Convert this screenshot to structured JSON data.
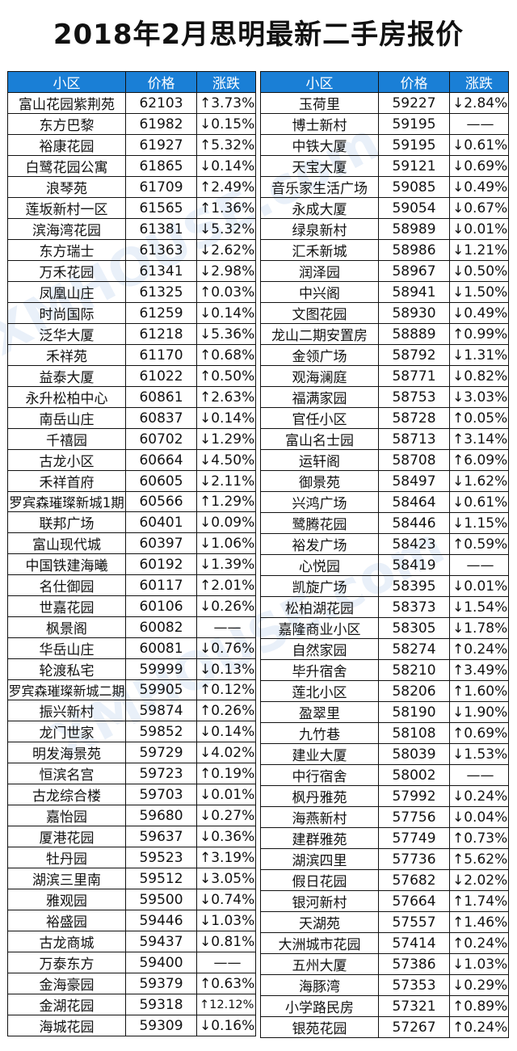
{
  "title": "2018年2月思明最新二手房报价",
  "headers": [
    "小区",
    "价格",
    "涨跌"
  ],
  "left_rows": [
    [
      "富山花园紫荆苑",
      "62103",
      "↑3.73%"
    ],
    [
      "东方巴黎",
      "61982",
      "↓0.15%"
    ],
    [
      "裕康花园",
      "61927",
      "↑5.32%"
    ],
    [
      "白鹭花园公寓",
      "61865",
      "↓0.14%"
    ],
    [
      "浪琴苑",
      "61709",
      "↑2.49%"
    ],
    [
      "莲坂新村一区",
      "61565",
      "↑1.36%"
    ],
    [
      "滨海湾花园",
      "61381",
      "↓5.32%"
    ],
    [
      "东方瑞士",
      "61363",
      "↓2.62%"
    ],
    [
      "万禾花园",
      "61341",
      "↓2.98%"
    ],
    [
      "凤凰山庄",
      "61325",
      "↑0.03%"
    ],
    [
      "时尚国际",
      "61259",
      "↓0.14%"
    ],
    [
      "泛华大厦",
      "61218",
      "↓5.36%"
    ],
    [
      "禾祥苑",
      "61170",
      "↑0.68%"
    ],
    [
      "益泰大厦",
      "61022",
      "↑0.50%"
    ],
    [
      "永升松柏中心",
      "60861",
      "↑2.63%"
    ],
    [
      "南岳山庄",
      "60837",
      "↓0.14%"
    ],
    [
      "千禧园",
      "60702",
      "↓1.29%"
    ],
    [
      "古龙小区",
      "60664",
      "↓4.50%"
    ],
    [
      "禾祥首府",
      "60605",
      "↓2.11%"
    ],
    [
      "罗宾森璀璨新城1期",
      "60566",
      "↑1.29%"
    ],
    [
      "联邦广场",
      "60401",
      "↓0.09%"
    ],
    [
      "富山现代城",
      "60397",
      "↓1.06%"
    ],
    [
      "中国铁建海曦",
      "60192",
      "↓1.39%"
    ],
    [
      "名仕御园",
      "60117",
      "↑2.01%"
    ],
    [
      "世嘉花园",
      "60106",
      "↓0.26%"
    ],
    [
      "枫景阁",
      "60082",
      "——"
    ],
    [
      "华岳山庄",
      "60081",
      "↓0.76%"
    ],
    [
      "轮渡私宅",
      "59999",
      "↓0.13%"
    ],
    [
      "罗宾森璀璨新城二期",
      "59905",
      "↑0.12%"
    ],
    [
      "振兴新村",
      "59874",
      "↑0.26%"
    ],
    [
      "龙门世家",
      "59852",
      "↓0.14%"
    ],
    [
      "明发海景苑",
      "59729",
      "↓4.02%"
    ],
    [
      "恒滨名宫",
      "59723",
      "↑0.19%"
    ],
    [
      "古龙综合楼",
      "59703",
      "↓0.01%"
    ],
    [
      "嘉怡园",
      "59680",
      "↓0.27%"
    ],
    [
      "厦港花园",
      "59637",
      "↓0.36%"
    ],
    [
      "牡丹园",
      "59523",
      "↑3.19%"
    ],
    [
      "湖滨三里南",
      "59512",
      "↓3.05%"
    ],
    [
      "雅观园",
      "59500",
      "↓0.74%"
    ],
    [
      "裕盛园",
      "59446",
      "↓1.03%"
    ],
    [
      "古龙商城",
      "59437",
      "↓0.81%"
    ],
    [
      "万泰东方",
      "59400",
      "——"
    ],
    [
      "金海豪园",
      "59379",
      "↑0.63%"
    ],
    [
      "金湖花园",
      "59318",
      "↑12.12%"
    ],
    [
      "海城花园",
      "59309",
      "↓0.16%"
    ]
  ],
  "right_rows": [
    [
      "玉荷里",
      "59227",
      "↓2.84%"
    ],
    [
      "博士新村",
      "59195",
      "——"
    ],
    [
      "中铁大厦",
      "59195",
      "↓0.61%"
    ],
    [
      "天宝大厦",
      "59121",
      "↓0.69%"
    ],
    [
      "音乐家生活广场",
      "59085",
      "↓0.49%"
    ],
    [
      "永成大厦",
      "59054",
      "↓0.67%"
    ],
    [
      "绿泉新村",
      "58989",
      "↓0.01%"
    ],
    [
      "汇禾新城",
      "58986",
      "↓1.21%"
    ],
    [
      "润泽园",
      "58967",
      "↓0.50%"
    ],
    [
      "中兴阁",
      "58941",
      "↓1.50%"
    ],
    [
      "文图花园",
      "58930",
      "↓0.49%"
    ],
    [
      "龙山二期安置房",
      "58889",
      "↑0.99%"
    ],
    [
      "金领广场",
      "58792",
      "↓1.31%"
    ],
    [
      "观海澜庭",
      "58771",
      "↓0.82%"
    ],
    [
      "福满家园",
      "58753",
      "↓3.03%"
    ],
    [
      "官任小区",
      "58728",
      "↑0.05%"
    ],
    [
      "富山名士园",
      "58713",
      "↑3.14%"
    ],
    [
      "运轩阁",
      "58708",
      "↑6.09%"
    ],
    [
      "御景苑",
      "58497",
      "↓1.62%"
    ],
    [
      "兴鸿广场",
      "58464",
      "↓0.61%"
    ],
    [
      "鹭腾花园",
      "58446",
      "↓1.15%"
    ],
    [
      "裕发广场",
      "58423",
      "↑0.59%"
    ],
    [
      "心悦园",
      "58419",
      "——"
    ],
    [
      "凯旋广场",
      "58395",
      "↓0.01%"
    ],
    [
      "松柏湖花园",
      "58373",
      "↓1.54%"
    ],
    [
      "嘉隆商业小区",
      "58305",
      "↓1.78%"
    ],
    [
      "自然家园",
      "58274",
      "↑0.24%"
    ],
    [
      "毕升宿舍",
      "58210",
      "↑3.49%"
    ],
    [
      "莲北小区",
      "58206",
      "↑1.60%"
    ],
    [
      "盈翠里",
      "58190",
      "↓1.90%"
    ],
    [
      "九竹巷",
      "58108",
      "↑0.69%"
    ],
    [
      "建业大厦",
      "58039",
      "↓1.53%"
    ],
    [
      "中行宿舍",
      "58002",
      "——"
    ],
    [
      "枫丹雅苑",
      "57992",
      "↓0.24%"
    ],
    [
      "海燕新村",
      "57756",
      "↓0.04%"
    ],
    [
      "建群雅苑",
      "57749",
      "↑0.73%"
    ],
    [
      "湖滨四里",
      "57736",
      "↑5.62%"
    ],
    [
      "假日花园",
      "57682",
      "↓2.02%"
    ],
    [
      "银河新村",
      "57664",
      "↑1.74%"
    ],
    [
      "天湖苑",
      "57557",
      "↑1.46%"
    ],
    [
      "大洲城市花园",
      "57414",
      "↑0.24%"
    ],
    [
      "五州大厦",
      "57386",
      "↓1.03%"
    ],
    [
      "海豚湾",
      "57353",
      "↓0.29%"
    ],
    [
      "小学路民房",
      "57321",
      "↑0.89%"
    ],
    [
      "银苑花园",
      "57267",
      "↑0.24%"
    ]
  ],
  "watermark": "XMHOUSE.com"
}
